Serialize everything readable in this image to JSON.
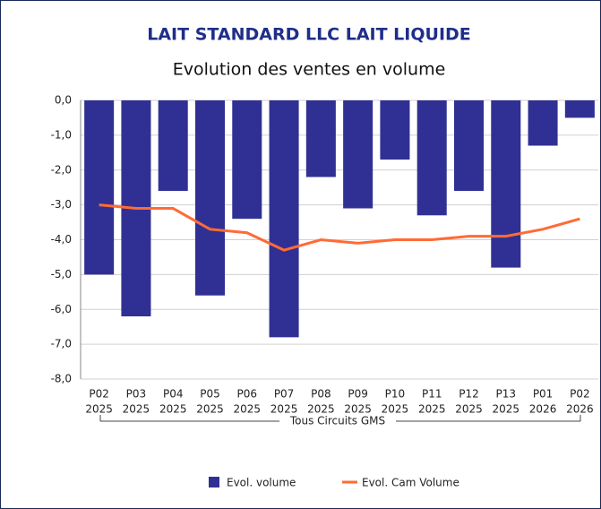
{
  "chart_data": {
    "type": "bar_line",
    "title": "LAIT STANDARD LLC LAIT LIQUIDE",
    "subtitle": "Evolution des ventes en volume",
    "categories": [
      [
        "P02",
        "2025"
      ],
      [
        "P03",
        "2025"
      ],
      [
        "P04",
        "2025"
      ],
      [
        "P05",
        "2025"
      ],
      [
        "P06",
        "2025"
      ],
      [
        "P07",
        "2025"
      ],
      [
        "P08",
        "2025"
      ],
      [
        "P09",
        "2025"
      ],
      [
        "P10",
        "2025"
      ],
      [
        "P11",
        "2025"
      ],
      [
        "P12",
        "2025"
      ],
      [
        "P13",
        "2025"
      ],
      [
        "P01",
        "2026"
      ],
      [
        "P02",
        "2026"
      ]
    ],
    "group_label": "Tous Circuits GMS",
    "series": [
      {
        "name": "Evol. volume",
        "type": "bar",
        "color": "#303094",
        "values": [
          -5.0,
          -6.2,
          -2.6,
          -5.6,
          -3.4,
          -6.8,
          -2.2,
          -3.1,
          -1.7,
          -3.3,
          -2.6,
          -4.8,
          -1.3,
          -0.5
        ]
      },
      {
        "name": "Evol. Cam Volume",
        "type": "line",
        "color": "#ff6b35",
        "values": [
          -3.0,
          -3.1,
          -3.1,
          -3.7,
          -3.8,
          -4.3,
          -4.0,
          -4.1,
          -4.0,
          -4.0,
          -3.9,
          -3.9,
          -3.7,
          -3.4
        ]
      }
    ],
    "ylim": [
      -8,
      0
    ],
    "yticks": [
      {
        "value": 0,
        "label": "0,0"
      },
      {
        "value": -1,
        "label": "-1,0"
      },
      {
        "value": -2,
        "label": "-2,0"
      },
      {
        "value": -3,
        "label": "-3,0"
      },
      {
        "value": -4,
        "label": "-4,0"
      },
      {
        "value": -5,
        "label": "-5,0"
      },
      {
        "value": -6,
        "label": "-6,0"
      },
      {
        "value": -7,
        "label": "-7,0"
      },
      {
        "value": -8,
        "label": "-8,0"
      }
    ],
    "grid": true
  }
}
